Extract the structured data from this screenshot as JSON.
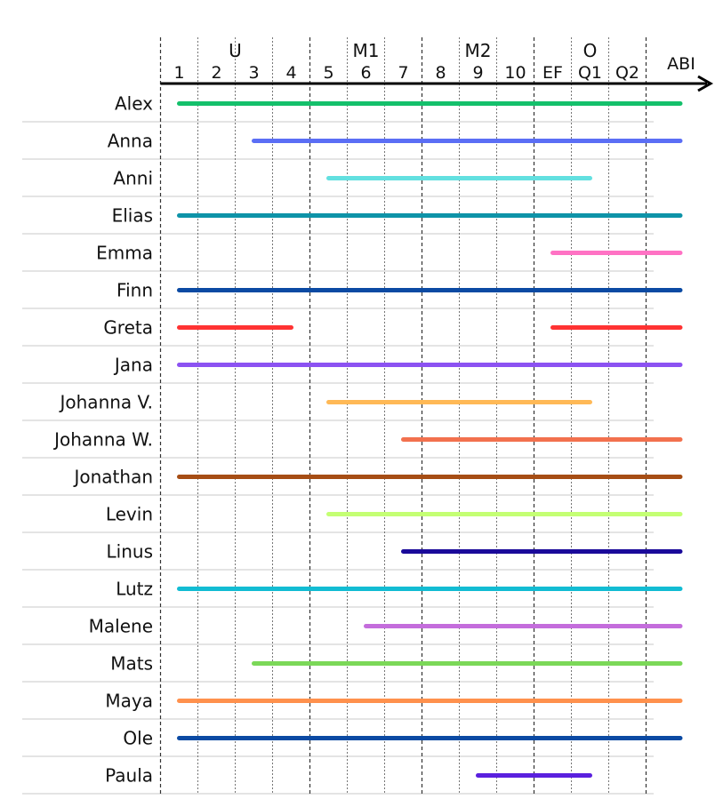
{
  "chart_data": {
    "type": "timeline",
    "title": "",
    "xlabel": "",
    "ylabel": "",
    "groups": [
      {
        "label": "U",
        "from": 1,
        "to": 4
      },
      {
        "label": "M1",
        "from": 5,
        "to": 7
      },
      {
        "label": "M2",
        "from": 8,
        "to": 10
      },
      {
        "label": "O",
        "from": 11,
        "to": 13
      }
    ],
    "grades": [
      "1",
      "2",
      "3",
      "4",
      "5",
      "6",
      "7",
      "8",
      "9",
      "10",
      "EF",
      "Q1",
      "Q2"
    ],
    "end_label": "ABI",
    "series": [
      {
        "name": "Alex",
        "color": "#14c06b",
        "segments": [
          [
            1,
            14
          ]
        ]
      },
      {
        "name": "Anna",
        "color": "#5b6ef5",
        "segments": [
          [
            3,
            14
          ]
        ]
      },
      {
        "name": "Anni",
        "color": "#62e0e0",
        "segments": [
          [
            5,
            12
          ]
        ]
      },
      {
        "name": "Elias",
        "color": "#0e93a8",
        "segments": [
          [
            1,
            14
          ]
        ]
      },
      {
        "name": "Emma",
        "color": "#ff72c4",
        "segments": [
          [
            11,
            14
          ]
        ]
      },
      {
        "name": "Finn",
        "color": "#0b4aa3",
        "segments": [
          [
            1,
            14
          ]
        ]
      },
      {
        "name": "Greta",
        "color": "#ff3333",
        "segments": [
          [
            1,
            4
          ],
          [
            11,
            14
          ]
        ]
      },
      {
        "name": "Jana",
        "color": "#8c52f2",
        "segments": [
          [
            1,
            14
          ]
        ]
      },
      {
        "name": "Johanna V.",
        "color": "#ffb956",
        "segments": [
          [
            5,
            12
          ]
        ]
      },
      {
        "name": "Johanna W.",
        "color": "#f2714e",
        "segments": [
          [
            7,
            14
          ]
        ]
      },
      {
        "name": "Jonathan",
        "color": "#a64d14",
        "segments": [
          [
            1,
            14
          ]
        ]
      },
      {
        "name": "Levin",
        "color": "#c4ff73",
        "segments": [
          [
            5,
            14
          ]
        ]
      },
      {
        "name": "Linus",
        "color": "#1a0a9a",
        "segments": [
          [
            7,
            14
          ]
        ]
      },
      {
        "name": "Lutz",
        "color": "#12bcd3",
        "segments": [
          [
            1,
            14
          ]
        ]
      },
      {
        "name": "Malene",
        "color": "#c46ddc",
        "segments": [
          [
            6,
            14
          ]
        ]
      },
      {
        "name": "Mats",
        "color": "#7bd858",
        "segments": [
          [
            3,
            14
          ]
        ]
      },
      {
        "name": "Maya",
        "color": "#ff914d",
        "segments": [
          [
            1,
            14
          ]
        ]
      },
      {
        "name": "Ole",
        "color": "#0b4aa3",
        "segments": [
          [
            1,
            14
          ]
        ]
      },
      {
        "name": "Paula",
        "color": "#5a20de",
        "segments": [
          [
            9,
            12
          ]
        ]
      }
    ]
  }
}
